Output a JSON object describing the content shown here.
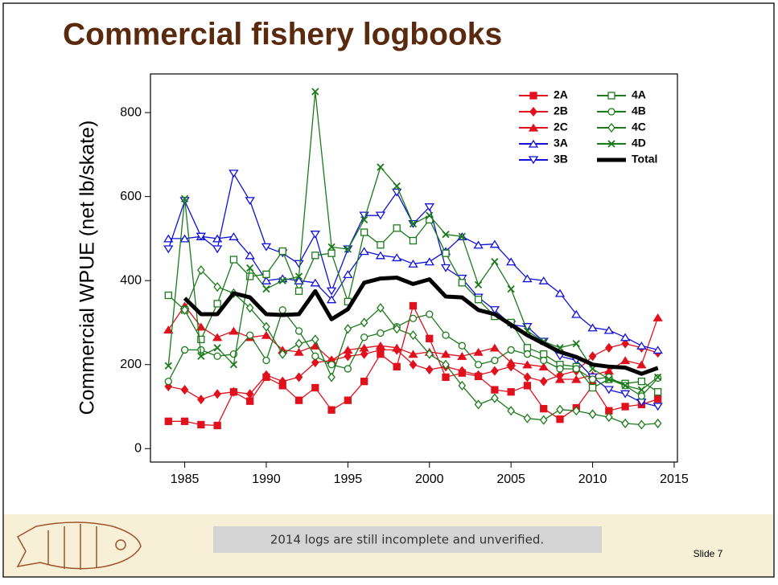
{
  "chart_data": {
    "type": "line",
    "title": "Commercial fishery logbooks",
    "y_label": "Commercial WPUE (net lb/skate)",
    "x": [
      1984,
      1985,
      1986,
      1987,
      1988,
      1989,
      1990,
      1991,
      1992,
      1993,
      1994,
      1995,
      1996,
      1997,
      1998,
      1999,
      2000,
      2001,
      2002,
      2003,
      2004,
      2005,
      2006,
      2007,
      2008,
      2009,
      2010,
      2011,
      2012,
      2013,
      2014
    ],
    "xlim": [
      1982.9,
      2015.2
    ],
    "xticks": [
      1985,
      1990,
      1995,
      2000,
      2005,
      2010,
      2015
    ],
    "ylim": [
      -32,
      892
    ],
    "yticks": [
      0,
      200,
      400,
      600,
      800
    ],
    "legend": "upper right",
    "grid": false,
    "series": [
      {
        "name": "2A",
        "color": "#e0101c",
        "marker": "square",
        "values": [
          65,
          65,
          57,
          55,
          135,
          113,
          170,
          150,
          115,
          145,
          92,
          115,
          160,
          225,
          195,
          340,
          262,
          170,
          180,
          172,
          140,
          135,
          150,
          95,
          70,
          97,
          150,
          90,
          100,
          105,
          118
        ]
      },
      {
        "name": "2B",
        "color": "#e0101c",
        "marker": "diamond",
        "values": [
          148,
          140,
          117,
          130,
          135,
          130,
          175,
          160,
          170,
          205,
          210,
          220,
          225,
          235,
          235,
          200,
          188,
          195,
          185,
          175,
          185,
          195,
          170,
          160,
          175,
          185,
          220,
          240,
          250,
          240,
          228
        ]
      },
      {
        "name": "2C",
        "color": "#e0101c",
        "marker": "triangle",
        "values": [
          283,
          340,
          290,
          265,
          280,
          265,
          270,
          235,
          230,
          245,
          210,
          235,
          240,
          245,
          240,
          225,
          230,
          225,
          220,
          230,
          240,
          205,
          200,
          195,
          165,
          165,
          175,
          185,
          210,
          200,
          312
        ]
      },
      {
        "name": "3A",
        "color": "#1010d8",
        "marker": "triangle-open",
        "values": [
          500,
          500,
          505,
          500,
          505,
          460,
          400,
          405,
          400,
          395,
          355,
          415,
          470,
          460,
          455,
          440,
          445,
          470,
          505,
          485,
          487,
          445,
          405,
          400,
          370,
          320,
          288,
          282,
          265,
          245,
          235
        ]
      },
      {
        "name": "3B",
        "color": "#1010d8",
        "marker": "triangle-down-open",
        "values": [
          475,
          590,
          505,
          475,
          655,
          590,
          480,
          465,
          440,
          510,
          375,
          475,
          555,
          555,
          610,
          535,
          575,
          430,
          405,
          360,
          330,
          295,
          290,
          255,
          220,
          210,
          170,
          140,
          130,
          110,
          100
        ]
      },
      {
        "name": "4A",
        "color": "#1a7a1a",
        "marker": "square-open",
        "values": [
          365,
          330,
          260,
          345,
          450,
          410,
          415,
          470,
          375,
          460,
          465,
          350,
          515,
          485,
          525,
          495,
          545,
          465,
          395,
          355,
          315,
          300,
          240,
          225,
          200,
          195,
          145,
          165,
          155,
          160,
          135
        ]
      },
      {
        "name": "4B",
        "color": "#1a7a1a",
        "marker": "circle-open",
        "values": [
          160,
          235,
          235,
          220,
          225,
          270,
          210,
          330,
          280,
          220,
          200,
          190,
          265,
          275,
          290,
          310,
          320,
          270,
          245,
          200,
          210,
          235,
          225,
          210,
          190,
          190,
          165,
          170,
          150,
          125,
          168
        ]
      },
      {
        "name": "4C",
        "color": "#1a7a1a",
        "marker": "diamond-open",
        "values": [
          null,
          330,
          425,
          385,
          370,
          335,
          290,
          225,
          250,
          260,
          170,
          285,
          300,
          335,
          285,
          270,
          225,
          200,
          150,
          105,
          120,
          90,
          72,
          68,
          93,
          90,
          82,
          75,
          60,
          57,
          60
        ]
      },
      {
        "name": "4D",
        "color": "#1a7a1a",
        "marker": "x",
        "values": [
          197,
          595,
          220,
          240,
          200,
          430,
          380,
          400,
          410,
          850,
          480,
          475,
          545,
          670,
          625,
          535,
          555,
          510,
          505,
          390,
          445,
          380,
          280,
          255,
          240,
          250,
          190,
          165,
          150,
          140,
          170
        ]
      },
      {
        "name": "Total",
        "color": "#000000",
        "marker": "none",
        "line_width": 5,
        "values": [
          null,
          358,
          320,
          320,
          370,
          360,
          320,
          318,
          320,
          375,
          308,
          332,
          395,
          405,
          407,
          392,
          403,
          362,
          360,
          330,
          320,
          295,
          270,
          250,
          230,
          218,
          200,
          195,
          193,
          178,
          192
        ]
      }
    ]
  },
  "slide": {
    "note": "2014 logs are still incomplete and unverified.",
    "number": "Slide 7"
  }
}
